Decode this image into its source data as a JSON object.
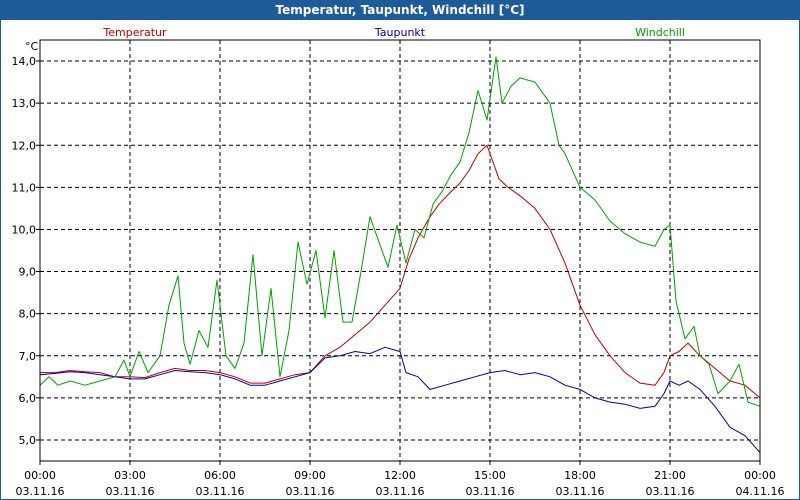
{
  "window": {
    "title": "Temperatur, Taupunkt, Windchill [°C]"
  },
  "colors": {
    "frame": "#1f5a99",
    "temperatur": "#c00000",
    "taupunkt": "#0000b0",
    "windchill": "#00a000",
    "grid": "#000000"
  },
  "chart_data": {
    "type": "line",
    "title": "Temperatur, Taupunkt, Windchill [°C]",
    "ylabel": "°C",
    "xlabel": "",
    "ylim": [
      4.5,
      14.5
    ],
    "xlim": [
      0,
      24
    ],
    "grid": true,
    "legend_position": "top",
    "y_ticks": [
      {
        "value": 5,
        "label": "5,0"
      },
      {
        "value": 6,
        "label": "6,0"
      },
      {
        "value": 7,
        "label": "7,0"
      },
      {
        "value": 8,
        "label": "8,0"
      },
      {
        "value": 9,
        "label": "9,0"
      },
      {
        "value": 10,
        "label": "10,0"
      },
      {
        "value": 11,
        "label": "11,0"
      },
      {
        "value": 12,
        "label": "12,0"
      },
      {
        "value": 13,
        "label": "13,0"
      },
      {
        "value": 14,
        "label": "14,0"
      }
    ],
    "x_ticks": [
      {
        "value": 0,
        "time": "00:00",
        "date": "03.11.16"
      },
      {
        "value": 3,
        "time": "03:00",
        "date": "03.11.16"
      },
      {
        "value": 6,
        "time": "06:00",
        "date": "03.11.16"
      },
      {
        "value": 9,
        "time": "09:00",
        "date": "03.11.16"
      },
      {
        "value": 12,
        "time": "12:00",
        "date": "03.11.16"
      },
      {
        "value": 15,
        "time": "15:00",
        "date": "03.11.16"
      },
      {
        "value": 18,
        "time": "18:00",
        "date": "03.11.16"
      },
      {
        "value": 21,
        "time": "21:00",
        "date": "03.11.16"
      },
      {
        "value": 24,
        "time": "00:00",
        "date": "04.11.16"
      }
    ],
    "series": [
      {
        "name": "Temperatur",
        "color": "#c00000",
        "points": [
          [
            0,
            6.6
          ],
          [
            0.5,
            6.6
          ],
          [
            1,
            6.65
          ],
          [
            1.5,
            6.62
          ],
          [
            2,
            6.6
          ],
          [
            2.5,
            6.5
          ],
          [
            3,
            6.5
          ],
          [
            3.5,
            6.48
          ],
          [
            4,
            6.6
          ],
          [
            4.5,
            6.7
          ],
          [
            5,
            6.65
          ],
          [
            5.5,
            6.65
          ],
          [
            6,
            6.6
          ],
          [
            6.5,
            6.5
          ],
          [
            7,
            6.35
          ],
          [
            7.5,
            6.35
          ],
          [
            8,
            6.45
          ],
          [
            8.5,
            6.55
          ],
          [
            9,
            6.6
          ],
          [
            9.5,
            7.0
          ],
          [
            10,
            7.2
          ],
          [
            10.5,
            7.5
          ],
          [
            11,
            7.8
          ],
          [
            11.5,
            8.2
          ],
          [
            12,
            8.6
          ],
          [
            12.3,
            9.3
          ],
          [
            12.6,
            9.8
          ],
          [
            13,
            10.3
          ],
          [
            13.3,
            10.6
          ],
          [
            13.7,
            10.9
          ],
          [
            14,
            11.1
          ],
          [
            14.3,
            11.4
          ],
          [
            14.6,
            11.8
          ],
          [
            14.9,
            12.0
          ],
          [
            15,
            11.8
          ],
          [
            15.3,
            11.2
          ],
          [
            15.6,
            11.0
          ],
          [
            16,
            10.8
          ],
          [
            16.5,
            10.5
          ],
          [
            17,
            10.0
          ],
          [
            17.5,
            9.2
          ],
          [
            18,
            8.2
          ],
          [
            18.5,
            7.5
          ],
          [
            19,
            7.0
          ],
          [
            19.5,
            6.6
          ],
          [
            20,
            6.35
          ],
          [
            20.5,
            6.3
          ],
          [
            20.8,
            6.6
          ],
          [
            21,
            7.0
          ],
          [
            21.3,
            7.1
          ],
          [
            21.6,
            7.3
          ],
          [
            22,
            7.0
          ],
          [
            22.5,
            6.7
          ],
          [
            23,
            6.4
          ],
          [
            23.5,
            6.3
          ],
          [
            24,
            6.0
          ]
        ]
      },
      {
        "name": "Taupunkt",
        "color": "#0000b0",
        "points": [
          [
            0,
            6.55
          ],
          [
            0.5,
            6.58
          ],
          [
            1,
            6.62
          ],
          [
            1.5,
            6.6
          ],
          [
            2,
            6.55
          ],
          [
            2.5,
            6.5
          ],
          [
            3,
            6.45
          ],
          [
            3.5,
            6.45
          ],
          [
            4,
            6.55
          ],
          [
            4.5,
            6.65
          ],
          [
            5,
            6.62
          ],
          [
            5.5,
            6.6
          ],
          [
            6,
            6.55
          ],
          [
            6.5,
            6.45
          ],
          [
            7,
            6.3
          ],
          [
            7.5,
            6.3
          ],
          [
            8,
            6.4
          ],
          [
            8.5,
            6.5
          ],
          [
            9,
            6.6
          ],
          [
            9.5,
            6.95
          ],
          [
            10,
            7.0
          ],
          [
            10.5,
            7.1
          ],
          [
            11,
            7.05
          ],
          [
            11.5,
            7.2
          ],
          [
            12,
            7.1
          ],
          [
            12.2,
            6.6
          ],
          [
            12.6,
            6.5
          ],
          [
            13,
            6.2
          ],
          [
            13.5,
            6.3
          ],
          [
            14,
            6.4
          ],
          [
            14.5,
            6.5
          ],
          [
            15,
            6.6
          ],
          [
            15.5,
            6.65
          ],
          [
            16,
            6.55
          ],
          [
            16.5,
            6.6
          ],
          [
            17,
            6.5
          ],
          [
            17.5,
            6.3
          ],
          [
            18,
            6.2
          ],
          [
            18.5,
            6.0
          ],
          [
            19,
            5.9
          ],
          [
            19.5,
            5.85
          ],
          [
            20,
            5.75
          ],
          [
            20.5,
            5.8
          ],
          [
            20.8,
            6.1
          ],
          [
            21,
            6.4
          ],
          [
            21.3,
            6.3
          ],
          [
            21.6,
            6.4
          ],
          [
            22,
            6.2
          ],
          [
            22.5,
            5.8
          ],
          [
            23,
            5.3
          ],
          [
            23.5,
            5.1
          ],
          [
            24,
            4.7
          ]
        ]
      },
      {
        "name": "Windchill",
        "color": "#00a000",
        "points": [
          [
            0,
            6.3
          ],
          [
            0.3,
            6.5
          ],
          [
            0.6,
            6.3
          ],
          [
            1,
            6.4
          ],
          [
            1.5,
            6.3
          ],
          [
            2,
            6.4
          ],
          [
            2.5,
            6.5
          ],
          [
            2.8,
            6.9
          ],
          [
            3,
            6.5
          ],
          [
            3.3,
            7.1
          ],
          [
            3.6,
            6.6
          ],
          [
            4,
            7.0
          ],
          [
            4.3,
            8.2
          ],
          [
            4.6,
            8.9
          ],
          [
            4.8,
            7.3
          ],
          [
            5,
            6.8
          ],
          [
            5.3,
            7.6
          ],
          [
            5.6,
            7.2
          ],
          [
            5.9,
            8.8
          ],
          [
            6.2,
            7.0
          ],
          [
            6.5,
            6.7
          ],
          [
            6.8,
            7.3
          ],
          [
            7.1,
            9.4
          ],
          [
            7.4,
            7.0
          ],
          [
            7.7,
            8.6
          ],
          [
            8,
            6.5
          ],
          [
            8.3,
            7.6
          ],
          [
            8.6,
            9.7
          ],
          [
            8.9,
            8.7
          ],
          [
            9.2,
            9.5
          ],
          [
            9.5,
            7.9
          ],
          [
            9.8,
            9.5
          ],
          [
            10.1,
            7.8
          ],
          [
            10.4,
            7.8
          ],
          [
            10.7,
            9.0
          ],
          [
            11,
            10.3
          ],
          [
            11.3,
            9.7
          ],
          [
            11.6,
            9.1
          ],
          [
            11.9,
            10.1
          ],
          [
            12.2,
            9.2
          ],
          [
            12.5,
            10.0
          ],
          [
            12.8,
            9.8
          ],
          [
            13.1,
            10.6
          ],
          [
            13.4,
            10.9
          ],
          [
            13.7,
            11.3
          ],
          [
            14,
            11.6
          ],
          [
            14.3,
            12.3
          ],
          [
            14.6,
            13.3
          ],
          [
            14.9,
            12.6
          ],
          [
            15.2,
            14.1
          ],
          [
            15.4,
            13.0
          ],
          [
            15.7,
            13.4
          ],
          [
            16,
            13.6
          ],
          [
            16.5,
            13.5
          ],
          [
            17,
            13.0
          ],
          [
            17.3,
            12.0
          ],
          [
            17.5,
            11.8
          ],
          [
            18,
            11.0
          ],
          [
            18.5,
            10.7
          ],
          [
            19,
            10.2
          ],
          [
            19.5,
            9.9
          ],
          [
            20,
            9.7
          ],
          [
            20.5,
            9.6
          ],
          [
            20.8,
            10.0
          ],
          [
            21,
            10.1
          ],
          [
            21.2,
            8.3
          ],
          [
            21.5,
            7.4
          ],
          [
            21.8,
            7.7
          ],
          [
            22,
            7.0
          ],
          [
            22.3,
            6.8
          ],
          [
            22.6,
            6.1
          ],
          [
            23,
            6.4
          ],
          [
            23.3,
            6.8
          ],
          [
            23.6,
            5.9
          ],
          [
            24,
            5.8
          ]
        ]
      }
    ]
  }
}
